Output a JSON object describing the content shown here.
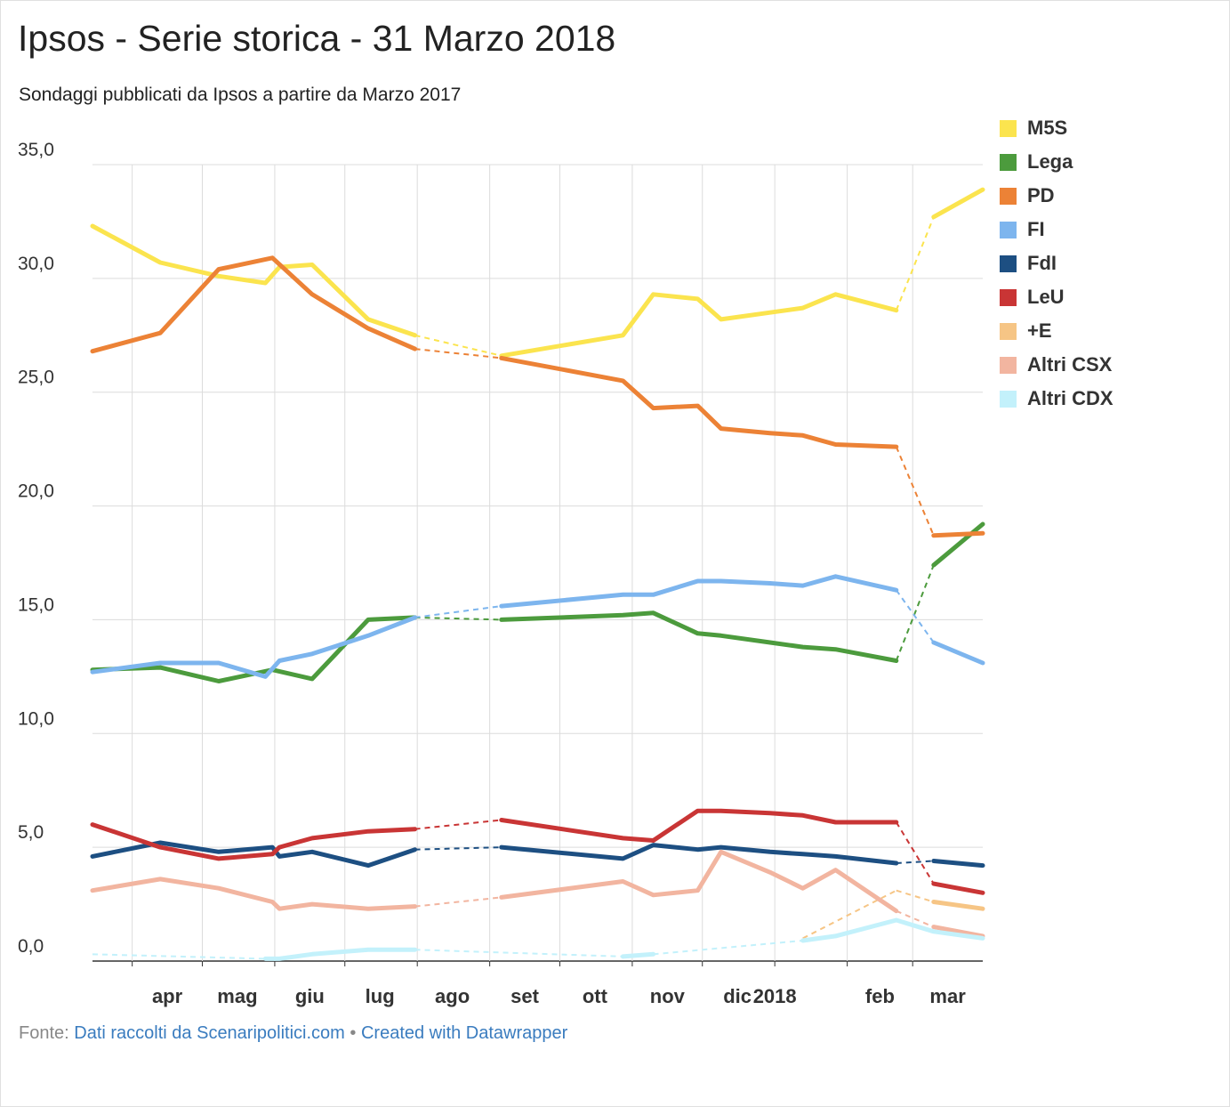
{
  "title": "Ipsos - Serie storica - 31 Marzo 2018",
  "subtitle": "Sondaggi pubblicati da Ipsos a partire da Marzo 2017",
  "footer": {
    "source_label": "Fonte:",
    "source_text": "Dati raccolti da Scenaripolitici.com",
    "separator": "•",
    "credit": "Created with Datawrapper"
  },
  "chart_data": {
    "type": "line",
    "title": "Ipsos - Serie storica - 31 Marzo 2018",
    "subtitle": "Sondaggi pubblicati da Ipsos a partire da Marzo 2017",
    "ylim": [
      0,
      35
    ],
    "yticks": [
      0,
      5,
      10,
      15,
      20,
      25,
      30,
      35
    ],
    "ytick_labels": [
      "0,0",
      "5,0",
      "10,0",
      "15,0",
      "20,0",
      "25,0",
      "30,0",
      "35,0"
    ],
    "xlim": [
      "2017-03-15",
      "2018-03-31"
    ],
    "xticks": [
      {
        "date": "2017-04-01",
        "label": "apr"
      },
      {
        "date": "2017-05-01",
        "label": "mag"
      },
      {
        "date": "2017-06-01",
        "label": "giu"
      },
      {
        "date": "2017-07-01",
        "label": "lug"
      },
      {
        "date": "2017-08-01",
        "label": "ago"
      },
      {
        "date": "2017-09-01",
        "label": "set"
      },
      {
        "date": "2017-10-01",
        "label": "ott"
      },
      {
        "date": "2017-11-01",
        "label": "nov"
      },
      {
        "date": "2017-12-01",
        "label": "dic"
      },
      {
        "date": "2018-01-01",
        "label": "2018"
      },
      {
        "date": "2018-02-01",
        "label": "feb"
      },
      {
        "date": "2018-03-01",
        "label": "mar"
      }
    ],
    "grid": true,
    "legend_position": "right",
    "series": [
      {
        "name": "M5S",
        "color": "#fbe44e",
        "dates": [
          "2017-03-15",
          "2017-04-13",
          "2017-05-08",
          "2017-05-28",
          "2017-06-03",
          "2017-06-17",
          "2017-07-11",
          "2017-07-31",
          "2017-09-06",
          "2017-10-28",
          "2017-11-10",
          "2017-11-29",
          "2017-12-09",
          "2017-12-30",
          "2018-01-13",
          "2018-01-27",
          "2018-02-22",
          "2018-03-10",
          "2018-03-31"
        ],
        "values": [
          32.3,
          30.7,
          30.1,
          29.8,
          30.5,
          30.6,
          28.2,
          27.5,
          26.6,
          27.5,
          29.3,
          29.1,
          28.2,
          28.5,
          28.7,
          29.3,
          28.6,
          32.7,
          33.9
        ],
        "dashed_after": [
          7,
          16
        ]
      },
      {
        "name": "Lega",
        "color": "#4c9b3d",
        "dates": [
          "2017-03-15",
          "2017-04-13",
          "2017-05-08",
          "2017-05-31",
          "2017-06-17",
          "2017-07-11",
          "2017-07-31",
          "2017-09-06",
          "2017-10-28",
          "2017-11-10",
          "2017-11-29",
          "2017-12-09",
          "2017-12-30",
          "2018-01-13",
          "2018-01-27",
          "2018-02-22",
          "2018-03-10",
          "2018-03-31"
        ],
        "values": [
          12.8,
          12.9,
          12.3,
          12.8,
          12.4,
          15.0,
          15.1,
          15.0,
          15.2,
          15.3,
          14.4,
          14.3,
          14.0,
          13.8,
          13.7,
          13.2,
          17.4,
          19.2
        ],
        "dashed_after": [
          6,
          15
        ]
      },
      {
        "name": "PD",
        "color": "#ec8236",
        "dates": [
          "2017-03-15",
          "2017-04-13",
          "2017-05-08",
          "2017-05-31",
          "2017-06-17",
          "2017-07-11",
          "2017-07-31",
          "2017-09-06",
          "2017-10-28",
          "2017-11-10",
          "2017-11-29",
          "2017-12-09",
          "2017-12-30",
          "2018-01-13",
          "2018-01-27",
          "2018-02-22",
          "2018-03-10",
          "2018-03-31"
        ],
        "values": [
          26.8,
          27.6,
          30.4,
          30.9,
          29.3,
          27.8,
          26.9,
          26.5,
          25.5,
          24.3,
          24.4,
          23.4,
          23.2,
          23.1,
          22.7,
          22.6,
          18.7,
          18.8
        ],
        "dashed_after": [
          6,
          15
        ]
      },
      {
        "name": "FI",
        "color": "#7db5ee",
        "dates": [
          "2017-03-15",
          "2017-04-13",
          "2017-05-08",
          "2017-05-28",
          "2017-06-03",
          "2017-06-17",
          "2017-07-11",
          "2017-07-31",
          "2017-09-06",
          "2017-10-28",
          "2017-11-10",
          "2017-11-29",
          "2017-12-09",
          "2017-12-30",
          "2018-01-13",
          "2018-01-27",
          "2018-02-22",
          "2018-03-10",
          "2018-03-31"
        ],
        "values": [
          12.7,
          13.1,
          13.1,
          12.5,
          13.2,
          13.5,
          14.3,
          15.1,
          15.6,
          16.1,
          16.1,
          16.7,
          16.7,
          16.6,
          16.5,
          16.9,
          16.3,
          14.0,
          13.1
        ],
        "dashed_after": [
          7,
          16
        ]
      },
      {
        "name": "FdI",
        "color": "#1d4f82",
        "dates": [
          "2017-03-15",
          "2017-04-13",
          "2017-05-08",
          "2017-05-31",
          "2017-06-03",
          "2017-06-17",
          "2017-07-11",
          "2017-07-31",
          "2017-09-06",
          "2017-10-28",
          "2017-11-10",
          "2017-11-29",
          "2017-12-09",
          "2017-12-30",
          "2018-01-13",
          "2018-01-27",
          "2018-02-22",
          "2018-03-10",
          "2018-03-31"
        ],
        "values": [
          4.6,
          5.2,
          4.8,
          5.0,
          4.6,
          4.8,
          4.2,
          4.9,
          5.0,
          4.5,
          5.1,
          4.9,
          5.0,
          4.8,
          4.7,
          4.6,
          4.3,
          4.4,
          4.2
        ],
        "dashed_after": [
          7,
          16
        ]
      },
      {
        "name": "LeU",
        "color": "#c93535",
        "dates": [
          "2017-03-15",
          "2017-04-13",
          "2017-05-08",
          "2017-05-31",
          "2017-06-03",
          "2017-06-17",
          "2017-07-11",
          "2017-07-31",
          "2017-09-06",
          "2017-10-28",
          "2017-11-10",
          "2017-11-29",
          "2017-12-09",
          "2017-12-30",
          "2018-01-13",
          "2018-01-27",
          "2018-02-22",
          "2018-03-10",
          "2018-03-31"
        ],
        "values": [
          6.0,
          5.0,
          4.5,
          4.7,
          5.0,
          5.4,
          5.7,
          5.8,
          6.2,
          5.4,
          5.3,
          6.6,
          6.6,
          6.5,
          6.4,
          6.1,
          6.1,
          3.4,
          3.0
        ],
        "dashed_after": [
          7,
          16
        ]
      },
      {
        "name": "+E",
        "color": "#f6c585",
        "dates": [
          "2018-01-13",
          "2018-02-22",
          "2018-03-10",
          "2018-03-31"
        ],
        "values": [
          1.0,
          3.1,
          2.6,
          2.3
        ],
        "dashed_after": [
          0,
          1
        ]
      },
      {
        "name": "Altri CSX",
        "color": "#f2b5a0",
        "dates": [
          "2017-03-15",
          "2017-04-13",
          "2017-05-08",
          "2017-05-31",
          "2017-06-03",
          "2017-06-17",
          "2017-07-11",
          "2017-07-31",
          "2017-09-06",
          "2017-10-28",
          "2017-11-10",
          "2017-11-29",
          "2017-12-09",
          "2017-12-30",
          "2018-01-13",
          "2018-01-27",
          "2018-02-22",
          "2018-03-10",
          "2018-03-31"
        ],
        "values": [
          3.1,
          3.6,
          3.2,
          2.6,
          2.3,
          2.5,
          2.3,
          2.4,
          2.8,
          3.5,
          2.9,
          3.1,
          4.8,
          3.9,
          3.2,
          4.0,
          2.2,
          1.5,
          1.1
        ],
        "dashed_after": [
          7,
          16
        ]
      },
      {
        "name": "Altri CDX",
        "color": "#c3f1fb",
        "dates": [
          "2017-03-15",
          "2017-05-28",
          "2017-06-03",
          "2017-06-17",
          "2017-07-11",
          "2017-07-31",
          "2017-10-28",
          "2017-11-10",
          "2018-01-13",
          "2018-01-27",
          "2018-02-22",
          "2018-03-10",
          "2018-03-31"
        ],
        "values": [
          0.3,
          0.1,
          0.1,
          0.3,
          0.5,
          0.5,
          0.2,
          0.3,
          0.9,
          1.1,
          1.8,
          1.3,
          1.0
        ],
        "dashed_after": [
          0,
          5,
          7
        ]
      }
    ]
  }
}
